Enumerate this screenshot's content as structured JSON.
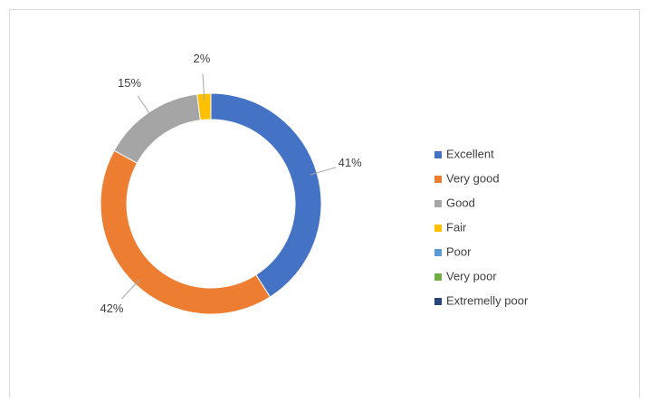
{
  "chart_data": {
    "type": "donut",
    "categories": [
      "Excellent",
      "Very good",
      "Good",
      "Fair",
      "Poor",
      "Very poor",
      "Extremelly poor"
    ],
    "values": [
      41,
      42,
      15,
      2,
      0,
      0,
      0
    ],
    "value_labels": [
      "41%",
      "42%",
      "15%",
      "2%",
      null,
      null,
      null
    ],
    "colors": [
      "#4472c4",
      "#ed7d31",
      "#a5a5a5",
      "#ffc000",
      "#5b9bd5",
      "#70ad47",
      "#264478"
    ],
    "legend": "right"
  }
}
